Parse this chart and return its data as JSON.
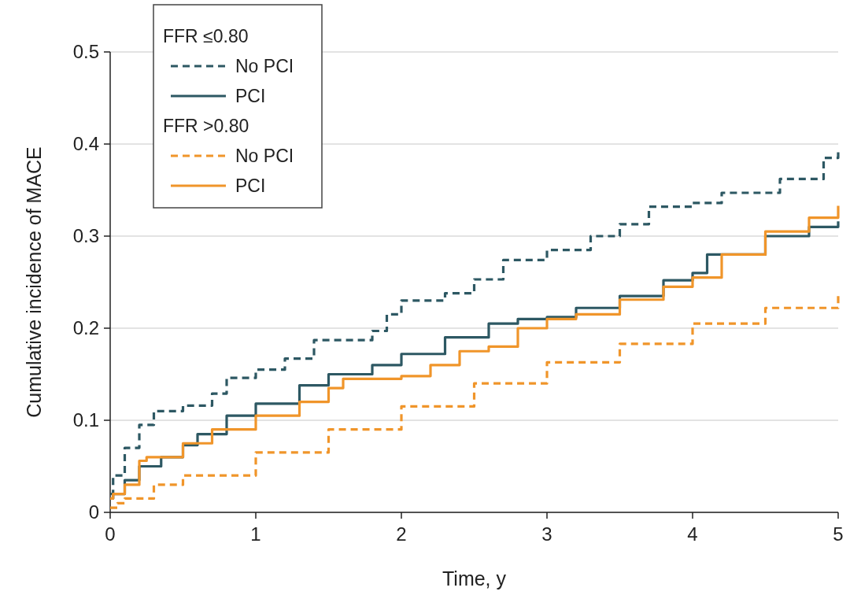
{
  "chart_data": {
    "type": "step",
    "xlabel": "Time, y",
    "ylabel": "Cumulative incidence of MACE",
    "xlim": [
      0,
      5
    ],
    "ylim": [
      0,
      0.5
    ],
    "xticks": [
      0,
      1,
      2,
      3,
      4,
      5
    ],
    "yticks": [
      0,
      0.1,
      0.2,
      0.3,
      0.4,
      0.5
    ],
    "grid": "y",
    "legend": "top left",
    "annotations": [
      "FFR ≤0.80",
      "FFR >0.80"
    ],
    "series": [
      {
        "name": "No PCI",
        "color": "#2d5863",
        "line_style": "dashed",
        "x": [
          0,
          0.02,
          0.1,
          0.2,
          0.3,
          0.5,
          0.7,
          0.8,
          1.0,
          1.2,
          1.4,
          1.7,
          1.8,
          1.9,
          2.0,
          2.3,
          2.5,
          2.7,
          3.0,
          3.3,
          3.5,
          3.7,
          4.0,
          4.2,
          4.5,
          4.6,
          4.85,
          4.9,
          5.0
        ],
        "values": [
          0.02,
          0.04,
          0.07,
          0.095,
          0.11,
          0.116,
          0.129,
          0.146,
          0.155,
          0.167,
          0.187,
          0.187,
          0.197,
          0.215,
          0.23,
          0.238,
          0.253,
          0.274,
          0.285,
          0.3,
          0.313,
          0.332,
          0.336,
          0.347,
          0.347,
          0.362,
          0.362,
          0.385,
          0.394
        ]
      },
      {
        "name": "PCI",
        "color": "#2d5863",
        "line_style": "solid",
        "x": [
          0,
          0.02,
          0.1,
          0.2,
          0.35,
          0.5,
          0.6,
          0.8,
          1.0,
          1.3,
          1.5,
          1.8,
          2.0,
          2.3,
          2.6,
          2.8,
          3.0,
          3.2,
          3.5,
          3.8,
          4.0,
          4.1,
          4.5,
          4.8,
          5.0
        ],
        "values": [
          0.015,
          0.02,
          0.035,
          0.05,
          0.06,
          0.073,
          0.085,
          0.105,
          0.118,
          0.138,
          0.15,
          0.16,
          0.172,
          0.19,
          0.205,
          0.21,
          0.212,
          0.222,
          0.235,
          0.252,
          0.26,
          0.28,
          0.3,
          0.31,
          0.316
        ]
      },
      {
        "name": "No PCI",
        "color": "#f0952a",
        "line_style": "dashed",
        "x": [
          0,
          0.05,
          0.1,
          0.3,
          0.5,
          1.0,
          1.5,
          2.0,
          2.5,
          3.0,
          3.5,
          4.0,
          4.5,
          5.0
        ],
        "values": [
          0.005,
          0.01,
          0.015,
          0.03,
          0.04,
          0.065,
          0.09,
          0.115,
          0.14,
          0.163,
          0.183,
          0.205,
          0.222,
          0.24
        ]
      },
      {
        "name": "PCI",
        "color": "#f0952a",
        "line_style": "solid",
        "x": [
          0,
          0.02,
          0.1,
          0.2,
          0.25,
          0.5,
          0.7,
          1.0,
          1.3,
          1.5,
          1.6,
          2.0,
          2.2,
          2.4,
          2.6,
          2.8,
          3.0,
          3.2,
          3.5,
          3.8,
          4.0,
          4.2,
          4.5,
          4.8,
          5.0
        ],
        "values": [
          0.015,
          0.02,
          0.03,
          0.056,
          0.06,
          0.075,
          0.09,
          0.105,
          0.12,
          0.135,
          0.145,
          0.148,
          0.16,
          0.175,
          0.18,
          0.2,
          0.21,
          0.215,
          0.231,
          0.245,
          0.255,
          0.28,
          0.305,
          0.32,
          0.333
        ]
      }
    ]
  }
}
